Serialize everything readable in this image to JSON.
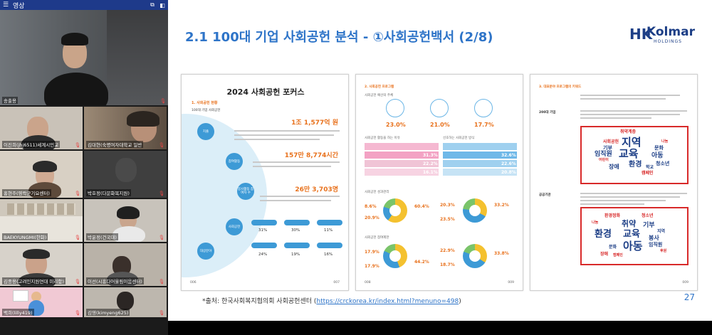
{
  "panel": {
    "title": "영상",
    "participants": [
      {
        "name": "송출용"
      },
      {
        "name": "이진희(jhj6511)세계시민교"
      },
      {
        "name": "김대현(숙명여자대학교 일반"
      },
      {
        "name": "홍현주(영락군기요센터)"
      },
      {
        "name": "박호정(다문화복지원)"
      },
      {
        "name": "BAEKYUNGMI(한화)"
      },
      {
        "name": "박윤정(건국대)"
      },
      {
        "name": "김종용(고려인지원연대 미리함)"
      },
      {
        "name": "이선(시흥다어울림이음센터)"
      },
      {
        "name": "백희(lilly419)"
      },
      {
        "name": "김영(kimyeng625)"
      }
    ]
  },
  "slide": {
    "title": "2.1 100대 기업 사회공헌 분석 - ①사회공헌백서 (2/8)",
    "logo": {
      "brand": "Kolmar",
      "sub": "HOLDINGS",
      "mark": "HK"
    },
    "footnote_prefix": "*출처: 한국사회복지협의회 사회공헌센터 (",
    "footnote_link": "https://crckorea.kr/index.html?menuno=498",
    "footnote_suffix": ")",
    "page_number": "27"
  },
  "page1": {
    "title": "2024 사회공헌 포커스",
    "section": "1. 사회공헌 현황",
    "subtitle": "100대 기업 사회공헌",
    "nodes": [
      "지출",
      "참여활동",
      "봉사활동 참여자 수",
      "사회공헌",
      "대상분야"
    ],
    "stats": [
      "1조 1,577억 원",
      "157만 8,774시간",
      "26만 3,703명"
    ],
    "pill_values": [
      [
        "31%",
        "30%",
        "11%"
      ],
      [
        "24%",
        "19%",
        "16%"
      ]
    ],
    "footer_left": "006",
    "footer_right": "007"
  },
  "page2": {
    "section": "2. 사회공헌 프로그램",
    "sub1": "사회공헌 예산의 주체",
    "icon_pcts": [
      "23.0%",
      "21.0%",
      "17.7%"
    ],
    "sub2": "사회공헌 활동을 하는 이유",
    "sub3": "선호하는 사회공헌 방식",
    "pink_vals": [
      "31.3%",
      "22.2%",
      "16.1%"
    ],
    "blue_vals": [
      "32.6%",
      "22.6%",
      "20.8%"
    ],
    "sub4": "사회공헌 성과관리",
    "donut_vals_a": [
      "8.6%",
      "60.4%",
      "20.9%"
    ],
    "donut_vals_b": [
      "20.3%",
      "33.2%",
      "23.5%"
    ],
    "sub5": "사회공헌 참여제한",
    "donut_vals_c": [
      "17.9%",
      "44.2%",
      "17.9%"
    ],
    "donut_vals_d": [
      "22.9%",
      "33.8%",
      "18.7%"
    ],
    "footer_left": "008",
    "footer_right": "009"
  },
  "page3": {
    "section": "3. 대표분야 프로그램의 키워드",
    "label1": "200대 기업",
    "label2": "공공기관",
    "cloud1": [
      "지역",
      "교육",
      "임직원",
      "환경",
      "아동",
      "장애",
      "청소년",
      "문화",
      "사회공헌",
      "기부",
      "취약계층",
      "캠페인",
      "학교",
      "어린이",
      "나눔"
    ],
    "cloud2": [
      "환경",
      "교육",
      "아동",
      "취약",
      "기부",
      "임직원",
      "봉사",
      "청소년",
      "문화",
      "지역",
      "환경정화",
      "장애",
      "나눔",
      "캠페인",
      "후원"
    ],
    "footer_right": "009"
  },
  "colors": {
    "accent": "#2e74c8",
    "orange": "#e8711c",
    "brand": "#1c3e86",
    "highlight": "#d82a2a"
  }
}
